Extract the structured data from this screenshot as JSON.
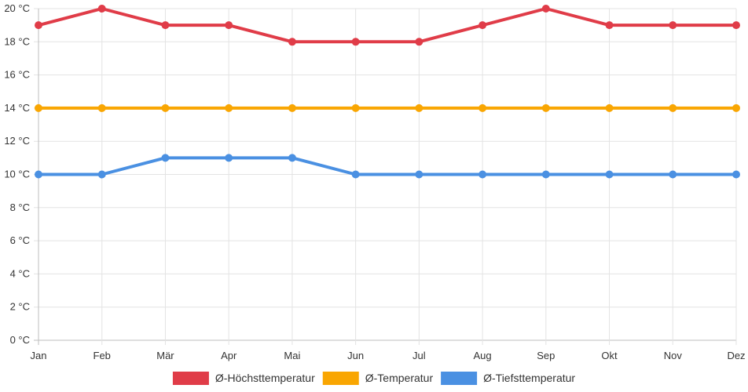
{
  "chart_data": {
    "type": "line",
    "categories": [
      "Jan",
      "Feb",
      "Mär",
      "Apr",
      "Mai",
      "Jun",
      "Jul",
      "Aug",
      "Sep",
      "Okt",
      "Nov",
      "Dez"
    ],
    "ylim": [
      0,
      20
    ],
    "y_tick_step": 2,
    "y_unit": "°C",
    "grid": true,
    "legend_position": "bottom",
    "series": [
      {
        "name": "Ø-Höchsttemperatur",
        "color": "#e03c48",
        "values": [
          19,
          20,
          19,
          19,
          18,
          18,
          18,
          19,
          20,
          19,
          19,
          19
        ]
      },
      {
        "name": "Ø-Temperatur",
        "color": "#f9a602",
        "values": [
          14,
          14,
          14,
          14,
          14,
          14,
          14,
          14,
          14,
          14,
          14,
          14
        ]
      },
      {
        "name": "Ø-Tiefsttemperatur",
        "color": "#4a90e2",
        "values": [
          10,
          10,
          11,
          11,
          11,
          10,
          10,
          10,
          10,
          10,
          10,
          10
        ]
      }
    ]
  }
}
